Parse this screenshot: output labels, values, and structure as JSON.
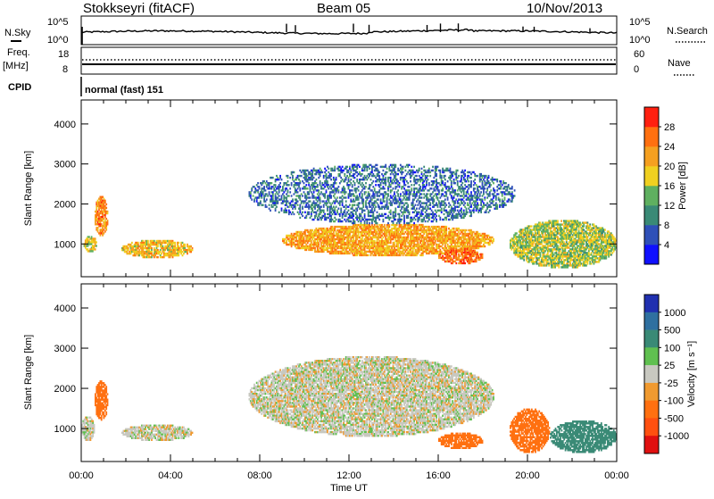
{
  "header": {
    "station": "Stokkseyri (fitACF)",
    "beam": "Beam 05",
    "date": "10/Nov/2013"
  },
  "noise_panel": {
    "left_label": "N.Sky",
    "left_ticks": [
      "10^5",
      "10^0"
    ],
    "right_ticks": [
      "10^5",
      "10^0"
    ],
    "right_label": "N.Search"
  },
  "freq_panel": {
    "label_top": "Freq.",
    "label_unit": "[MHz]",
    "left_ticks": [
      "18",
      "8"
    ],
    "right_ticks": [
      "60",
      "0"
    ],
    "right_label": "Nave"
  },
  "cpid_panel": {
    "label": "CPID",
    "text": "normal (fast) 151"
  },
  "x_axis": {
    "label": "Time UT",
    "ticks": [
      "00:00",
      "04:00",
      "08:00",
      "12:00",
      "16:00",
      "20:00",
      "00:00"
    ]
  },
  "chart_data": [
    {
      "type": "heatmap",
      "title": "",
      "xlabel": "",
      "ylabel": "Slant Range [km]",
      "y_ticks": [
        "1000",
        "2000",
        "3000",
        "4000"
      ],
      "ylim": [
        180,
        4600
      ],
      "colorbar": {
        "label": "Power [dB]",
        "ticks": [
          "4",
          "8",
          "12",
          "16",
          "20",
          "24",
          "28"
        ],
        "colors": [
          "#1010ff",
          "#2f50b8",
          "#3a8a76",
          "#5fb060",
          "#f0d020",
          "#f5a020",
          "#ff7010",
          "#ff2010"
        ]
      },
      "regions": [
        {
          "t0": 0.1,
          "t1": 0.7,
          "r0": 800,
          "r1": 1200,
          "value": 18
        },
        {
          "t0": 0.6,
          "t1": 1.2,
          "r0": 1200,
          "r1": 2200,
          "value": 24
        },
        {
          "t0": 1.8,
          "t1": 5.0,
          "r0": 650,
          "r1": 1100,
          "value": 20
        },
        {
          "t0": 9.0,
          "t1": 18.5,
          "r0": 700,
          "r1": 1500,
          "value": 22
        },
        {
          "t0": 7.5,
          "t1": 19.5,
          "r0": 1500,
          "r1": 3000,
          "value": 8
        },
        {
          "t0": 16.0,
          "t1": 18.0,
          "r0": 500,
          "r1": 900,
          "value": 26
        },
        {
          "t0": 19.2,
          "t1": 24.0,
          "r0": 400,
          "r1": 1600,
          "value": 16
        }
      ]
    },
    {
      "type": "heatmap",
      "title": "",
      "xlabel": "Time UT",
      "ylabel": "Slant Range [km]",
      "y_ticks": [
        "1000",
        "2000",
        "3000",
        "4000"
      ],
      "ylim": [
        180,
        4600
      ],
      "colorbar": {
        "label": "Velocity [m s⁻¹]",
        "ticks": [
          "1000",
          "500",
          "100",
          "25",
          "-25",
          "-100",
          "-500",
          "-1000"
        ],
        "colors": [
          "#2030b0",
          "#2f70a0",
          "#3a8a76",
          "#60c050",
          "#c8c8c0",
          "#f09a30",
          "#ff7010",
          "#ff5010",
          "#e01010"
        ]
      },
      "regions": [
        {
          "t0": 0.0,
          "t1": 0.6,
          "r0": 700,
          "r1": 1300,
          "value": 0
        },
        {
          "t0": 0.6,
          "t1": 1.2,
          "r0": 1200,
          "r1": 2200,
          "value": -400
        },
        {
          "t0": 1.8,
          "t1": 5.0,
          "r0": 700,
          "r1": 1100,
          "value": 0
        },
        {
          "t0": 7.5,
          "t1": 18.5,
          "r0": 800,
          "r1": 2800,
          "value": 0
        },
        {
          "t0": 16.0,
          "t1": 18.0,
          "r0": 500,
          "r1": 900,
          "value": -400
        },
        {
          "t0": 19.2,
          "t1": 21.0,
          "r0": 400,
          "r1": 1500,
          "value": -400
        },
        {
          "t0": 21.0,
          "t1": 24.0,
          "r0": 400,
          "r1": 1200,
          "value": 150
        }
      ]
    }
  ]
}
